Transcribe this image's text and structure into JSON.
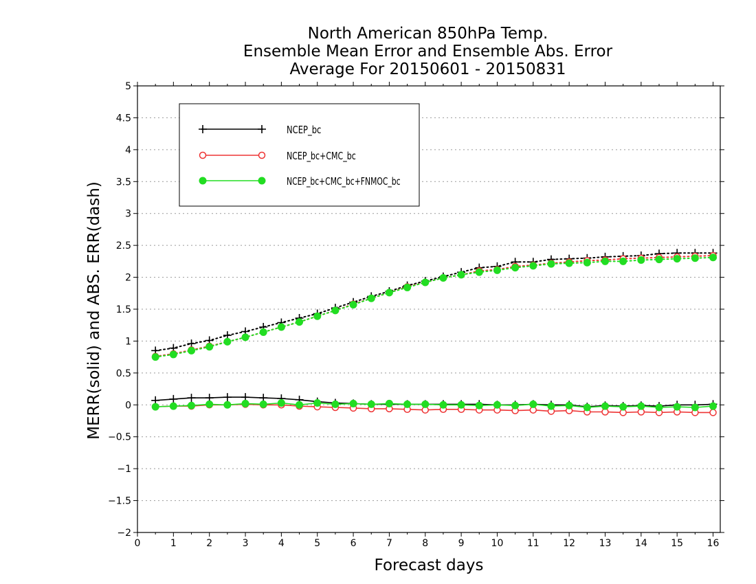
{
  "chart_data": {
    "type": "line",
    "title_lines": [
      "North American 850hPa Temp.",
      "Ensemble Mean Error and Ensemble Abs. Error",
      "Average For 20150601 - 20150831"
    ],
    "xlabel": "Forecast days",
    "ylabel": "MERR(solid) and ABS. ERR(dash)",
    "xlim": [
      0,
      16.2
    ],
    "ylim": [
      -2,
      5
    ],
    "xticks": [
      "0",
      "1",
      "2",
      "3",
      "4",
      "5",
      "6",
      "7",
      "8",
      "9",
      "10",
      "11",
      "12",
      "13",
      "14",
      "15",
      "16"
    ],
    "yticks": [
      "5",
      "4.5",
      "4",
      "3.5",
      "3",
      "2.5",
      "2",
      "1.5",
      "1",
      "0.5",
      "0",
      "-0.5",
      "-1",
      "-1.5",
      "-2"
    ],
    "grid": "horizontal dotted",
    "legend_position": "top-left",
    "x": [
      0.5,
      1,
      1.5,
      2,
      2.5,
      3,
      3.5,
      4,
      4.5,
      5,
      5.5,
      6,
      6.5,
      7,
      7.5,
      8,
      8.5,
      9,
      9.5,
      10,
      10.5,
      11,
      11.5,
      12,
      12.5,
      13,
      13.5,
      14,
      14.5,
      15,
      15.5,
      16
    ],
    "series": [
      {
        "name": "NCEP_bc",
        "color": "#000000",
        "marker": "plus",
        "merr": [
          0.07,
          0.09,
          0.11,
          0.11,
          0.12,
          0.12,
          0.11,
          0.1,
          0.08,
          0.05,
          0.03,
          0.02,
          0.01,
          0.01,
          0.01,
          0.01,
          0.01,
          0.01,
          0.01,
          0.0,
          0.0,
          0.01,
          0.0,
          0.0,
          -0.03,
          -0.01,
          -0.02,
          -0.01,
          -0.02,
          0.0,
          0.0,
          0.01
        ],
        "abs_err": [
          0.85,
          0.89,
          0.96,
          1.01,
          1.09,
          1.15,
          1.22,
          1.29,
          1.36,
          1.43,
          1.52,
          1.61,
          1.7,
          1.78,
          1.87,
          1.94,
          2.01,
          2.08,
          2.15,
          2.17,
          2.24,
          2.24,
          2.28,
          2.29,
          2.3,
          2.32,
          2.33,
          2.34,
          2.37,
          2.38,
          2.38,
          2.38
        ]
      },
      {
        "name": "NCEP_bc+CMC_bc",
        "color": "#ee3333",
        "marker": "open-circle",
        "merr": [
          -0.03,
          -0.02,
          -0.02,
          0.0,
          0.0,
          0.01,
          0.0,
          0.0,
          -0.02,
          -0.03,
          -0.04,
          -0.05,
          -0.06,
          -0.06,
          -0.07,
          -0.08,
          -0.07,
          -0.07,
          -0.08,
          -0.08,
          -0.09,
          -0.08,
          -0.1,
          -0.09,
          -0.11,
          -0.11,
          -0.12,
          -0.11,
          -0.12,
          -0.11,
          -0.12,
          -0.12
        ],
        "abs_err": [
          0.76,
          0.8,
          0.86,
          0.92,
          0.99,
          1.06,
          1.14,
          1.22,
          1.3,
          1.39,
          1.48,
          1.58,
          1.67,
          1.76,
          1.85,
          1.92,
          1.99,
          2.04,
          2.1,
          2.12,
          2.17,
          2.19,
          2.22,
          2.24,
          2.26,
          2.27,
          2.29,
          2.3,
          2.31,
          2.32,
          2.33,
          2.34
        ]
      },
      {
        "name": "NCEP_bc+CMC_bc+FNMOC_bc",
        "color": "#22dd22",
        "marker": "filled-circle",
        "merr": [
          -0.03,
          -0.02,
          -0.01,
          0.01,
          0.0,
          0.02,
          0.01,
          0.03,
          0.0,
          0.03,
          0.01,
          0.02,
          0.01,
          0.02,
          0.01,
          0.01,
          0.0,
          0.0,
          -0.01,
          0.0,
          -0.01,
          0.01,
          -0.02,
          -0.01,
          -0.04,
          -0.02,
          -0.03,
          -0.02,
          -0.04,
          -0.03,
          -0.04,
          -0.02
        ],
        "abs_err": [
          0.75,
          0.79,
          0.85,
          0.91,
          0.99,
          1.06,
          1.14,
          1.22,
          1.3,
          1.39,
          1.48,
          1.57,
          1.67,
          1.76,
          1.84,
          1.92,
          1.99,
          2.04,
          2.08,
          2.11,
          2.15,
          2.18,
          2.21,
          2.22,
          2.23,
          2.25,
          2.25,
          2.27,
          2.28,
          2.29,
          2.3,
          2.31
        ]
      }
    ]
  }
}
